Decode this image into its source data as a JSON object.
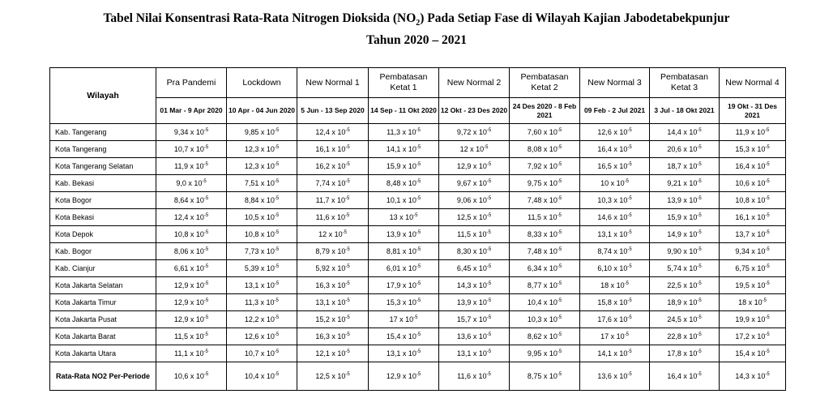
{
  "title": {
    "line1_pre": "Tabel Nilai Konsentrasi Rata-Rata Nitrogen Dioksida (NO",
    "line1_sub": "2",
    "line1_post": ") Pada Setiap Fase di Wilayah Kajian Jabodetabekpunjur",
    "line2": "Tahun 2020 – 2021"
  },
  "header": {
    "wilayah": "Wilayah",
    "phases": [
      "Pra Pandemi",
      "Lockdown",
      "New Normal 1",
      "Pembatasan Ketat 1",
      "New Normal 2",
      "Pembatasan Ketat 2",
      "New Normal 3",
      "Pembatasan Ketat 3",
      "New Normal 4"
    ],
    "dates": [
      "01 Mar - 9 Apr 2020",
      "10 Apr - 04 Jun 2020",
      "5 Jun - 13 Sep 2020",
      "14 Sep - 11 Okt 2020",
      "12 Okt - 23 Des 2020",
      "24 Des 2020 - 8 Feb 2021",
      "09 Feb - 2 Jul 2021",
      "3 Jul - 18 Okt 2021",
      "19 Okt - 31 Des 2021"
    ]
  },
  "exponent": "-5",
  "rows": [
    {
      "wilayah": "Kab. Tangerang",
      "values": [
        "9,34 x 10",
        "9,85 x 10",
        "12,4 x 10",
        "11,3 x 10",
        "9,72 x 10",
        "7,60 x 10",
        "12,6 x 10",
        "14,4 x 10",
        "11,9 x 10"
      ]
    },
    {
      "wilayah": "Kota Tangerang",
      "values": [
        "10,7 x 10",
        "12,3 x 10",
        "16,1 x 10",
        "14,1 x 10",
        "12 x 10",
        "8,08 x 10",
        "16,4 x 10",
        "20,6 x 10",
        "15,3 x 10"
      ]
    },
    {
      "wilayah": "Kota Tangerang Selatan",
      "values": [
        "11,9 x 10",
        "12,3 x 10",
        "16,2 x 10",
        "15,9 x 10",
        "12,9 x 10",
        "7,92 x 10",
        "16,5 x 10",
        "18,7 x 10",
        "16,4 x 10"
      ]
    },
    {
      "wilayah": "Kab. Bekasi",
      "values": [
        "9,0 x 10",
        "7,51 x 10",
        "7,74 x 10",
        "8,48 x 10",
        "9,67 x 10",
        "9,75 x 10",
        "10 x 10",
        "9,21 x 10",
        "10,6 x 10"
      ]
    },
    {
      "wilayah": "Kota Bogor",
      "values": [
        "8,64 x 10",
        "8,84 x 10",
        "11,7 x 10",
        "10,1 x 10",
        "9,06 x 10",
        "7,48 x 10",
        "10,3 x 10",
        "13,9 x 10",
        "10,8 x 10"
      ]
    },
    {
      "wilayah": "Kota Bekasi",
      "values": [
        "12,4 x 10",
        "10,5 x 10",
        "11,6 x 10",
        "13 x 10",
        "12,5 x 10",
        "11,5 x 10",
        "14,6 x 10",
        "15,9 x 10",
        "16,1 x 10"
      ]
    },
    {
      "wilayah": "Kota Depok",
      "values": [
        "10,8 x 10",
        "10,8 x 10",
        "12 x 10",
        "13,9 x 10",
        "11,5 x 10",
        "8,33 x 10",
        "13,1 x 10",
        "14,9 x 10",
        "13,7 x 10"
      ]
    },
    {
      "wilayah": "Kab. Bogor",
      "values": [
        "8,06 x 10",
        "7,73 x 10",
        "8,79 x 10",
        "8,81 x 10",
        "8,30 x 10",
        "7,48 x 10",
        "8,74 x 10",
        "9,90 x 10",
        "9,34 x 10"
      ]
    },
    {
      "wilayah": "Kab. Cianjur",
      "values": [
        "6,61 x 10",
        "5,39 x 10",
        "5,92 x 10",
        "6,01 x 10",
        "6,45 x 10",
        "6,34 x 10",
        "6,10 x 10",
        "5,74 x 10",
        "6,75 x 10"
      ]
    },
    {
      "wilayah": "Kota Jakarta Selatan",
      "values": [
        "12,9 x 10",
        "13,1 x 10",
        "16,3 x 10",
        "17,9 x 10",
        "14,3 x 10",
        "8,77 x 10",
        "18 x 10",
        "22,5 x 10",
        "19,5 x 10"
      ]
    },
    {
      "wilayah": "Kota Jakarta Timur",
      "values": [
        "12,9 x 10",
        "11,3 x 10",
        "13,1 x 10",
        "15,3 x 10",
        "13,9 x 10",
        "10,4 x 10",
        "15,8 x 10",
        "18,9 x 10",
        "18 x 10"
      ]
    },
    {
      "wilayah": "Kota Jakarta Pusat",
      "values": [
        "12,9 x 10",
        "12,2 x 10",
        "15,2 x 10",
        "17 x 10",
        "15,7 x 10",
        "10,3 x 10",
        "17,6 x 10",
        "24,5 x 10",
        "19,9 x 10"
      ]
    },
    {
      "wilayah": "Kota Jakarta Barat",
      "values": [
        "11,5 x 10",
        "12,6 x 10",
        "16,3 x 10",
        "15,4 x 10",
        "13,6 x 10",
        "8,62 x 10",
        "17 x 10",
        "22,8 x 10",
        "17,2 x 10"
      ]
    },
    {
      "wilayah": "Kota Jakarta Utara",
      "values": [
        "11,1 x 10",
        "10,7 x 10",
        "12,1 x 10",
        "13,1 x 10",
        "13,1 x 10",
        "9,95 x 10",
        "14,1 x 10",
        "17,8 x 10",
        "15,4 x 10"
      ]
    }
  ],
  "footer": {
    "label": "Rata-Rata NO2 Per-Periode",
    "values": [
      "10,6 x 10",
      "10,4 x 10",
      "12,5 x 10",
      "12,9 x 10",
      "11,6 x 10",
      "8,75 x 10",
      "13,6 x 10",
      "16,4 x 10",
      "14,3 x 10"
    ]
  }
}
